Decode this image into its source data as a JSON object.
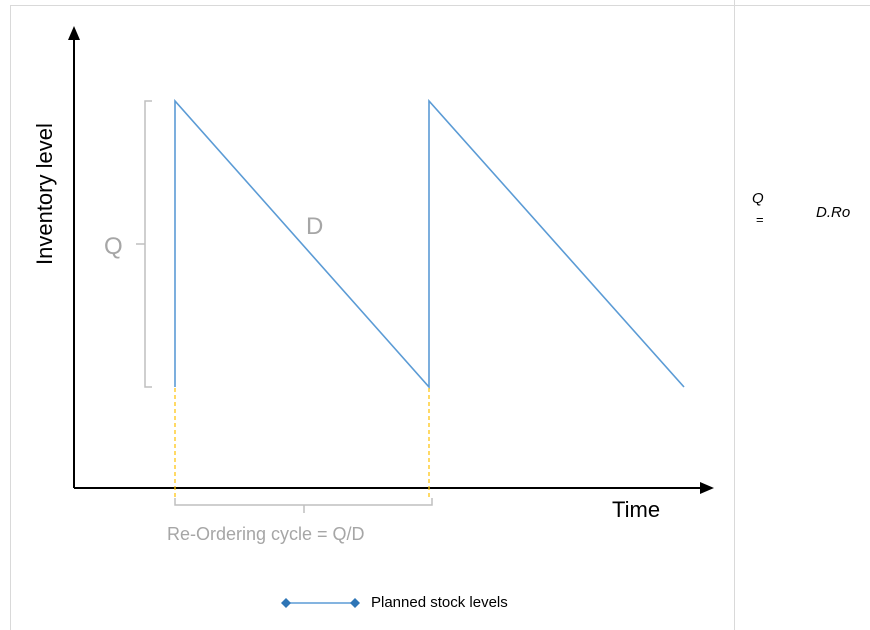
{
  "diagram": {
    "y_axis_label": "Inventory level",
    "x_axis_label": "Time",
    "q_label": "Q",
    "d_label": "D",
    "cycle_label": "Re-Ordering cycle = Q/D",
    "line_color": "#5b9bd5",
    "guide_color": "#ffc000",
    "bracket_color": "#bfbfbf",
    "muted_text_color": "#a6a6a6"
  },
  "formula": {
    "lhs": "Q",
    "equals": "=",
    "rhs": "D.Ro"
  },
  "legend": {
    "label": "Planned stock levels",
    "marker_icon": "diamond-icon"
  }
}
